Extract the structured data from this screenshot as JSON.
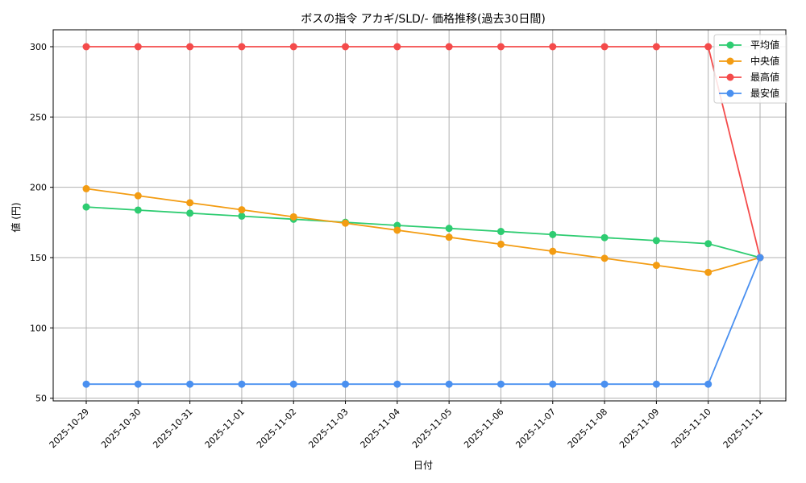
{
  "chart_data": {
    "type": "line",
    "title": "ボスの指令 アカギ/SLD/- 価格推移(過去30日間)",
    "xlabel": "日付",
    "ylabel": "値 (円)",
    "ylim": [
      47,
      312
    ],
    "yticks": [
      50,
      100,
      150,
      200,
      250,
      300
    ],
    "grid": true,
    "legend_position": "upper right",
    "x": [
      "2025-10-29",
      "2025-10-30",
      "2025-10-31",
      "2025-11-01",
      "2025-11-02",
      "2025-11-03",
      "2025-11-04",
      "2025-11-05",
      "2025-11-06",
      "2025-11-07",
      "2025-11-08",
      "2025-11-09",
      "2025-11-10",
      "2025-11-11"
    ],
    "series": [
      {
        "name": "平均値",
        "color": "#2ecc71",
        "values": [
          186,
          183.8,
          181.6,
          179.5,
          177.3,
          175.1,
          172.9,
          170.8,
          168.6,
          166.4,
          164.2,
          162.1,
          159.9,
          150
        ]
      },
      {
        "name": "中央値",
        "color": "#f39c12",
        "values": [
          199,
          194,
          189,
          184,
          179,
          174.5,
          169.5,
          164.5,
          159.5,
          154.5,
          149.5,
          144.5,
          139.5,
          150
        ]
      },
      {
        "name": "最高値",
        "color": "#f44b4b",
        "values": [
          300,
          300,
          300,
          300,
          300,
          300,
          300,
          300,
          300,
          300,
          300,
          300,
          300,
          150
        ]
      },
      {
        "name": "最安値",
        "color": "#4a90f0",
        "values": [
          60,
          60,
          60,
          60,
          60,
          60,
          60,
          60,
          60,
          60,
          60,
          60,
          60,
          150
        ]
      }
    ]
  }
}
